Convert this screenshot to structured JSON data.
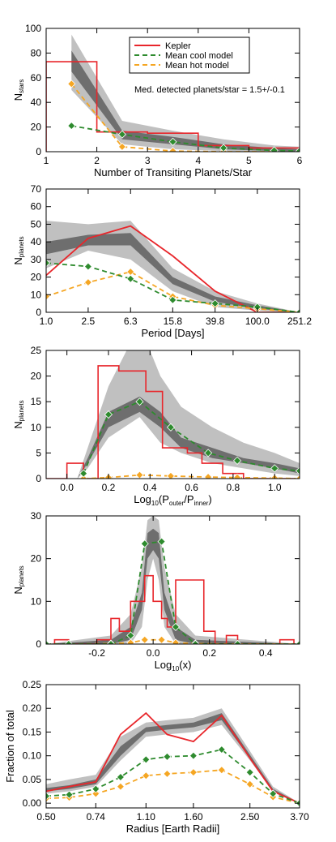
{
  "chart_data": [
    {
      "type": "line",
      "xlabel": "Number of Transiting Planets/Star",
      "ylabel": "N",
      "ylabel_sub": "stars",
      "xlim": [
        1,
        6
      ],
      "ylim": [
        0,
        100
      ],
      "xticks": [
        1,
        2,
        3,
        4,
        5,
        6
      ],
      "xtick_labels": [
        "1",
        "2",
        "3",
        "4",
        "5",
        "6"
      ],
      "yticks": [
        0,
        20,
        40,
        60,
        80,
        100
      ],
      "ytick_labels": [
        "0",
        "20",
        "40",
        "60",
        "80",
        "100"
      ],
      "legend": {
        "placement": "top-right",
        "entries": [
          {
            "label": "Kepler",
            "color": "#e8262b",
            "style": "solid"
          },
          {
            "label": "Mean cool model",
            "color": "#2e8b2e",
            "style": "dashed"
          },
          {
            "label": "Mean hot model",
            "color": "#f5a623",
            "style": "dashed"
          }
        ]
      },
      "annotation": "Med. detected planets/star = 1.5+/-0.1",
      "kepler_step": {
        "edges": [
          1,
          2,
          3,
          4,
          5,
          6
        ],
        "values": [
          73,
          16,
          15,
          5,
          3
        ]
      },
      "band_x": [
        1.5,
        2.5,
        3.5,
        4.5,
        5.5,
        6
      ],
      "outer_band": {
        "low": [
          50,
          6,
          2,
          0.5,
          0.2,
          0.1
        ],
        "high": [
          95,
          25,
          17,
          10,
          5,
          4
        ]
      },
      "inner_band": {
        "low": [
          65,
          10,
          6,
          2,
          0.5,
          0.3
        ],
        "high": [
          82,
          17,
          12,
          6,
          3,
          2
        ]
      },
      "series": [
        {
          "name": "Mean cool model",
          "x": [
            1.5,
            2.5,
            3.5,
            4.5,
            5.5,
            6
          ],
          "y": [
            21,
            14,
            8,
            3,
            1,
            0.5
          ]
        },
        {
          "name": "Mean hot model",
          "x": [
            1.5,
            2.5,
            3.5,
            4.5,
            5.5
          ],
          "y": [
            55,
            4,
            0.5,
            0,
            0
          ]
        }
      ]
    },
    {
      "type": "line",
      "xlabel": "Period [Days]",
      "ylabel": "N",
      "ylabel_sub": "planets",
      "xscale": "log",
      "xlim": [
        1.0,
        251.2
      ],
      "ylim": [
        0,
        70
      ],
      "xticks": [
        1.0,
        2.5,
        6.3,
        15.8,
        39.8,
        100.0,
        251.2
      ],
      "xtick_labels": [
        "1.0",
        "2.5",
        "6.3",
        "15.8",
        "39.8",
        "100.0",
        "251.2"
      ],
      "yticks": [
        0,
        10,
        20,
        30,
        40,
        50,
        60,
        70
      ],
      "ytick_labels": [
        "0",
        "10",
        "20",
        "30",
        "40",
        "50",
        "60",
        "70"
      ],
      "kepler_line": {
        "x": [
          1.0,
          2.5,
          6.3,
          15.8,
          39.8,
          100.0,
          251.2
        ],
        "y": [
          21,
          42,
          49,
          32,
          12,
          0,
          0
        ]
      },
      "band_x": [
        1.0,
        2.5,
        6.3,
        15.8,
        39.8,
        100.0,
        251.2
      ],
      "outer_band": {
        "low": [
          25,
          35,
          30,
          12,
          3,
          1,
          0
        ],
        "high": [
          52,
          50,
          52,
          25,
          12,
          5,
          0
        ]
      },
      "inner_band": {
        "low": [
          33,
          38,
          38,
          16,
          6,
          2,
          0
        ],
        "high": [
          40,
          44,
          45,
          20,
          9,
          4,
          0
        ]
      },
      "series": [
        {
          "name": "Mean cool model",
          "x": [
            1.0,
            2.5,
            6.3,
            15.8,
            39.8,
            100.0,
            251.2
          ],
          "y": [
            28,
            26,
            19,
            7,
            5,
            3,
            0
          ]
        },
        {
          "name": "Mean hot model",
          "x": [
            1.0,
            2.5,
            6.3,
            15.8,
            39.8,
            100.0,
            251.2
          ],
          "y": [
            9,
            17,
            23,
            9,
            4,
            2,
            0
          ]
        }
      ]
    },
    {
      "type": "line",
      "xlabel": "Log",
      "xlabel_sub": "10",
      "xlabel_rest": "(P",
      "xlabel_sub2": "outer",
      "xlabel_mid": "/P",
      "xlabel_sub3": "inner",
      "xlabel_end": ")",
      "ylabel": "N",
      "ylabel_sub": "planets",
      "xlim": [
        -0.1,
        1.12
      ],
      "ylim": [
        0,
        25
      ],
      "xticks": [
        0.0,
        0.2,
        0.4,
        0.6,
        0.8,
        1.0
      ],
      "xtick_labels": [
        "0.0",
        "0.2",
        "0.4",
        "0.6",
        "0.8",
        "1.0"
      ],
      "yticks": [
        0,
        5,
        10,
        15,
        20,
        25
      ],
      "ytick_labels": [
        "0",
        "5",
        "10",
        "15",
        "20",
        "25"
      ],
      "kepler_step": {
        "edges": [
          -0.1,
          0.0,
          0.08,
          0.15,
          0.25,
          0.38,
          0.46,
          0.58,
          0.65,
          0.75,
          0.85,
          0.95,
          1.05,
          1.12
        ],
        "values": [
          0,
          3,
          0,
          22,
          21,
          17,
          6,
          5,
          3,
          1,
          0,
          0,
          0
        ]
      },
      "band_x": [
        0.05,
        0.1,
        0.2,
        0.35,
        0.45,
        0.55,
        0.7,
        0.85,
        1.0,
        1.12
      ],
      "outer_band": {
        "low": [
          0,
          2,
          8,
          12,
          7,
          5,
          3,
          2,
          1,
          0.5
        ],
        "high": [
          0,
          6,
          18,
          30,
          20,
          14,
          10,
          7,
          5,
          3
        ]
      },
      "inner_band": {
        "low": [
          0,
          3,
          10,
          13,
          10,
          6,
          4,
          3,
          2,
          1
        ],
        "high": [
          0,
          4,
          13,
          16,
          13,
          8,
          6,
          4,
          3,
          2
        ]
      },
      "series": [
        {
          "name": "Mean cool model",
          "x": [
            0.08,
            0.2,
            0.35,
            0.5,
            0.68,
            0.82,
            1.0,
            1.12
          ],
          "y": [
            1,
            12.5,
            15,
            10,
            5,
            3.5,
            2,
            1.5
          ]
        },
        {
          "name": "Mean hot model",
          "x": [
            0.08,
            0.2,
            0.35,
            0.5,
            0.68,
            0.82,
            1.0,
            1.12
          ],
          "y": [
            0,
            0.2,
            0.7,
            0.5,
            0.3,
            0.2,
            0.1,
            0
          ]
        }
      ]
    },
    {
      "type": "line",
      "xlabel": "Log",
      "xlabel_sub": "10",
      "xlabel_rest": "(x)",
      "ylabel": "N",
      "ylabel_sub": "planets",
      "xlim": [
        -0.38,
        0.52
      ],
      "ylim": [
        0,
        30
      ],
      "xticks": [
        -0.2,
        0.0,
        0.2,
        0.4
      ],
      "xtick_labels": [
        "-0.2",
        "0.0",
        "0.2",
        "0.4"
      ],
      "yticks": [
        0,
        10,
        20,
        30
      ],
      "ytick_labels": [
        "0",
        "10",
        "20",
        "30"
      ],
      "kepler_step": {
        "edges": [
          -0.35,
          -0.3,
          -0.25,
          -0.2,
          -0.15,
          -0.12,
          -0.08,
          -0.03,
          0.0,
          0.03,
          0.05,
          0.08,
          0.12,
          0.18,
          0.22,
          0.26,
          0.3,
          0.45,
          0.5
        ],
        "values": [
          1,
          0,
          0,
          1,
          6,
          3,
          10,
          16,
          10,
          6,
          4,
          15,
          15,
          3,
          0,
          2,
          0,
          1
        ]
      },
      "band_x": [
        -0.38,
        -0.15,
        -0.08,
        -0.04,
        -0.02,
        0.0,
        0.02,
        0.04,
        0.08,
        0.15,
        0.52
      ],
      "outer_band": {
        "low": [
          0,
          0,
          0,
          4,
          15,
          20,
          15,
          4,
          0,
          0,
          0
        ],
        "high": [
          0,
          2,
          7,
          18,
          29,
          30,
          29,
          18,
          7,
          2,
          0
        ]
      },
      "inner_band": {
        "low": [
          0,
          0,
          1,
          8,
          20,
          22,
          20,
          8,
          1,
          0,
          0
        ],
        "high": [
          0,
          1,
          4,
          12,
          26,
          27,
          26,
          12,
          4,
          1,
          0
        ]
      },
      "series": [
        {
          "name": "Mean cool model",
          "x": [
            -0.38,
            -0.3,
            -0.15,
            -0.08,
            -0.03,
            0.03,
            0.08,
            0.15,
            0.3,
            0.52
          ],
          "y": [
            0,
            0,
            0,
            2,
            23.5,
            24,
            4,
            0,
            0,
            0
          ]
        },
        {
          "name": "Mean hot model",
          "x": [
            -0.38,
            -0.3,
            -0.15,
            -0.08,
            -0.03,
            0.03,
            0.08,
            0.15,
            0.3,
            0.52
          ],
          "y": [
            0,
            0,
            0.1,
            0.3,
            1,
            1,
            0.3,
            0.1,
            0,
            0
          ]
        }
      ]
    },
    {
      "type": "line",
      "xlabel": "Radius [Earth Radii]",
      "ylabel": "Fraction of total",
      "xscale": "log",
      "xlim": [
        0.5,
        3.7
      ],
      "ylim": [
        -0.01,
        0.25
      ],
      "xticks": [
        0.5,
        0.74,
        1.1,
        1.6,
        2.5,
        3.7
      ],
      "xtick_labels": [
        "0.50",
        "0.74",
        "1.10",
        "1.60",
        "2.50",
        "3.70"
      ],
      "yticks": [
        0.0,
        0.05,
        0.1,
        0.15,
        0.2,
        0.25
      ],
      "ytick_labels": [
        "0.00",
        "0.05",
        "0.10",
        "0.15",
        "0.20",
        "0.25"
      ],
      "kepler_line": {
        "x": [
          0.5,
          0.6,
          0.74,
          0.9,
          1.1,
          1.3,
          1.6,
          2.0,
          2.5,
          3.0,
          3.7
        ],
        "y": [
          0.025,
          0.035,
          0.045,
          0.145,
          0.19,
          0.145,
          0.13,
          0.185,
          0.095,
          0.025,
          0.0
        ]
      },
      "band_x": [
        0.5,
        0.6,
        0.74,
        0.9,
        1.1,
        1.3,
        1.6,
        2.0,
        2.5,
        3.0,
        3.7
      ],
      "outer_band": {
        "low": [
          0.02,
          0.025,
          0.035,
          0.09,
          0.14,
          0.145,
          0.15,
          0.165,
          0.09,
          0.025,
          0.0
        ],
        "high": [
          0.04,
          0.05,
          0.06,
          0.14,
          0.17,
          0.175,
          0.18,
          0.2,
          0.11,
          0.035,
          0.0
        ]
      },
      "inner_band": {
        "low": [
          0.025,
          0.03,
          0.04,
          0.1,
          0.15,
          0.155,
          0.16,
          0.175,
          0.095,
          0.027,
          0.0
        ],
        "high": [
          0.032,
          0.038,
          0.05,
          0.12,
          0.16,
          0.165,
          0.17,
          0.19,
          0.102,
          0.03,
          0.0
        ]
      },
      "series": [
        {
          "name": "Mean cool model",
          "x": [
            0.5,
            0.6,
            0.74,
            0.9,
            1.1,
            1.3,
            1.6,
            2.0,
            2.5,
            3.0,
            3.7
          ],
          "y": [
            0.015,
            0.018,
            0.03,
            0.055,
            0.092,
            0.098,
            0.1,
            0.113,
            0.065,
            0.02,
            0.0
          ]
        },
        {
          "name": "Mean hot model",
          "x": [
            0.5,
            0.6,
            0.74,
            0.9,
            1.1,
            1.3,
            1.6,
            2.0,
            2.5,
            3.0,
            3.7
          ],
          "y": [
            0.01,
            0.012,
            0.02,
            0.035,
            0.058,
            0.062,
            0.065,
            0.07,
            0.04,
            0.013,
            0.0
          ]
        }
      ]
    }
  ]
}
